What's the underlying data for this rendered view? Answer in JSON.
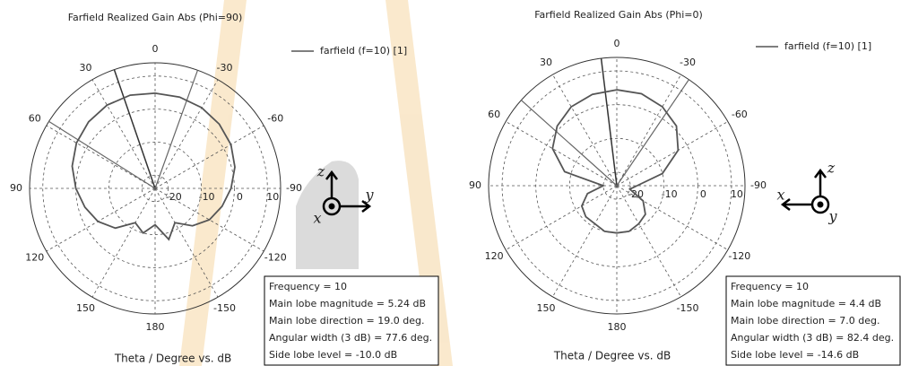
{
  "chart_data": [
    {
      "type": "polar",
      "title": "Farfield Realized Gain Abs (Phi=90)",
      "xlabel": "Theta / Degree vs. dB",
      "rlim": [
        -24,
        14
      ],
      "rticks": [
        -20,
        -10,
        0,
        10
      ],
      "angle_ticks": [
        0,
        30,
        60,
        90,
        120,
        150,
        180,
        -150,
        -120,
        -90,
        -60,
        -30
      ],
      "series": [
        {
          "name": "farfield (f=10) [1]",
          "color": "#555555",
          "theta": [
            0,
            15,
            30,
            45,
            60,
            75,
            90,
            105,
            120,
            135,
            150,
            165,
            180,
            -165,
            -150,
            -135,
            -120,
            -105,
            -90,
            -75,
            -60,
            -45,
            -30,
            -15
          ],
          "r": [
            4.8,
            5.2,
            5.1,
            4.5,
            3.5,
            2,
            0,
            -2,
            -4,
            -7,
            -12,
            -10,
            -13,
            -8,
            -12,
            -8,
            -5,
            -3,
            -1,
            1,
            2.5,
            3.5,
            4.2,
            4.6
          ]
        }
      ],
      "info": [
        {
          "label": "Frequency =",
          "value": 10
        },
        {
          "label": "Main lobe magnitude =",
          "value": 5.24,
          "unit": "dB"
        },
        {
          "label": "Main lobe direction =",
          "value": 19.0,
          "value_label": "19.0",
          "unit": "deg."
        },
        {
          "label": "Angular width (3 dB) =",
          "value": 77.6,
          "unit": "deg."
        },
        {
          "label": "Side lobe level =",
          "value": -10.0,
          "value_label": "-10.0",
          "unit": "dB"
        }
      ],
      "orientation_axes": [
        "z",
        "y",
        "x"
      ]
    },
    {
      "type": "polar",
      "title": "Farfield Realized Gain Abs (Phi=0)",
      "xlabel": "Theta / Degree vs. dB",
      "rlim": [
        -24,
        14
      ],
      "rticks": [
        -20,
        -10,
        0,
        10
      ],
      "angle_ticks": [
        0,
        30,
        60,
        90,
        120,
        150,
        180,
        -150,
        -120,
        -90,
        -60,
        -30
      ],
      "series": [
        {
          "name": "farfield (f=10) [1]",
          "color": "#555555",
          "theta": [
            0,
            15,
            30,
            45,
            60,
            75,
            90,
            105,
            120,
            135,
            150,
            165,
            180,
            -165,
            -150,
            -135,
            -120,
            -105,
            -90,
            -75,
            -60,
            -45,
            -30,
            -15
          ],
          "r": [
            4.4,
            4,
            3,
            1,
            -2,
            -8,
            -20,
            -15,
            -12,
            -11,
            -11,
            -10,
            -10,
            -10,
            -11,
            -12,
            -15,
            -20,
            -18,
            -10,
            -3,
            1,
            3,
            4.2
          ]
        }
      ],
      "info": [
        {
          "label": "Frequency =",
          "value": 10
        },
        {
          "label": "Main lobe magnitude =",
          "value": 4.4,
          "unit": "dB"
        },
        {
          "label": "Main lobe direction =",
          "value": 7.0,
          "value_label": "7.0",
          "unit": "deg."
        },
        {
          "label": "Angular width (3 dB) =",
          "value": 82.4,
          "unit": "deg."
        },
        {
          "label": "Side lobe level =",
          "value": -14.6,
          "unit": "dB"
        }
      ],
      "orientation_axes": [
        "z",
        "x",
        "y"
      ]
    }
  ]
}
